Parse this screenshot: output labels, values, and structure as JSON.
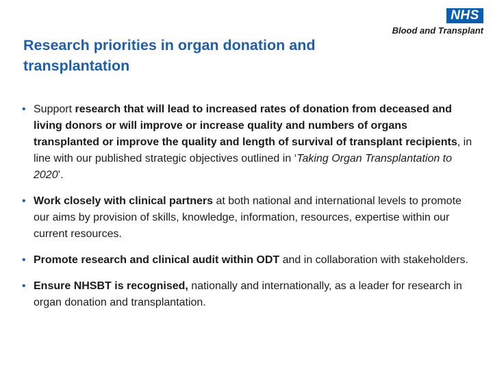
{
  "header": {
    "logo_badge": "NHS",
    "logo_org": "Blood and Transplant",
    "title": "Research priorities in organ donation and transplantation"
  },
  "colors": {
    "title": "#1f5fa8",
    "bullet": "#1f5fa8",
    "nhs_blue": "#0a5eb0",
    "body_text": "#1a1a1a"
  },
  "bullets": [
    {
      "parts": [
        {
          "text": "Support ",
          "style": "normal"
        },
        {
          "text": "research that will lead to increased rates of donation from deceased and living donors or will improve or increase quality and numbers of organs transplanted or improve the quality and length of survival of transplant recipients",
          "style": "bold"
        },
        {
          "text": ", in line with our published strategic objectives outlined in ‘",
          "style": "normal"
        },
        {
          "text": "Taking Organ Transplantation to 2020",
          "style": "italic"
        },
        {
          "text": "’.",
          "style": "normal"
        }
      ]
    },
    {
      "parts": [
        {
          "text": "Work closely with clinical partners",
          "style": "bold"
        },
        {
          "text": " at both national and international levels to promote our aims by provision of skills, knowledge, information, resources, expertise within our current resources.",
          "style": "normal"
        }
      ]
    },
    {
      "parts": [
        {
          "text": "Promote research and clinical audit within ODT",
          "style": "bold"
        },
        {
          "text": " and in collaboration with stakeholders.",
          "style": "normal"
        }
      ]
    },
    {
      "parts": [
        {
          "text": "Ensure NHSBT is recognised,",
          "style": "bold"
        },
        {
          "text": " nationally and internationally, as a leader for research in organ donation and transplantation.",
          "style": "normal"
        }
      ]
    }
  ]
}
